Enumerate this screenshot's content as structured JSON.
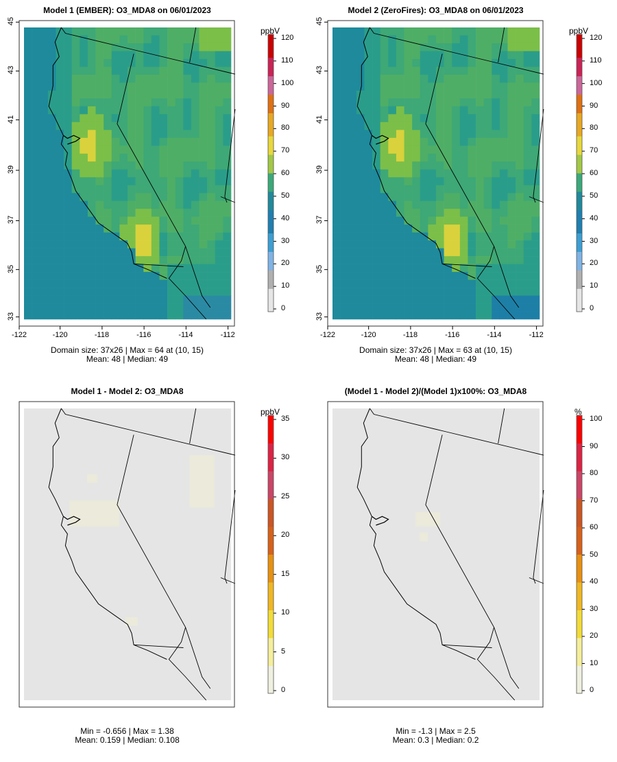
{
  "panels": [
    {
      "id": "p1",
      "title": "Model 1 (EMBER): O3_MDA8 on 06/01/2023",
      "stats_line1": "Domain size: 37x26 | Max = 64 at (10, 15)",
      "stats_line2": "Mean: 48 |  Median: 49",
      "unit": "ppbV",
      "colorbar_labels": [
        "0",
        "10",
        "20",
        "30",
        "40",
        "50",
        "60",
        "70",
        "80",
        "90",
        "100",
        "110",
        "120"
      ],
      "x_ticks": [
        "-122",
        "-120",
        "-118",
        "-116",
        "-114",
        "-112"
      ],
      "y_ticks": [
        "33",
        "35",
        "37",
        "39",
        "41",
        "43",
        "45"
      ]
    },
    {
      "id": "p2",
      "title": "Model 2 (ZeroFires): O3_MDA8 on 06/01/2023",
      "stats_line1": "Domain size: 37x26 | Max = 63 at (10, 15)",
      "stats_line2": "Mean: 48 |  Median: 49",
      "unit": "ppbV",
      "colorbar_labels": [
        "0",
        "10",
        "20",
        "30",
        "40",
        "50",
        "60",
        "70",
        "80",
        "90",
        "100",
        "110",
        "120"
      ],
      "x_ticks": [
        "-122",
        "-120",
        "-118",
        "-116",
        "-114",
        "-112"
      ],
      "y_ticks": [
        "33",
        "35",
        "37",
        "39",
        "41",
        "43",
        "45"
      ]
    },
    {
      "id": "p3",
      "title": "Model 1 - Model 2: O3_MDA8",
      "stats_line1": "Min = -0.656 | Max = 1.38",
      "stats_line2": "Mean: 0.159 |  Median: 0.108",
      "unit": "ppbV",
      "colorbar_labels": [
        "0",
        "5",
        "10",
        "15",
        "20",
        "25",
        "30",
        "35"
      ]
    },
    {
      "id": "p4",
      "title": "(Model 1 - Model 2)/(Model 1)x100%: O3_MDA8",
      "stats_line1": "Min = -1.3 | Max = 2.5",
      "stats_line2": "Mean: 0.3 |  Median: 0.2",
      "unit": "%",
      "colorbar_labels": [
        "0",
        "10",
        "20",
        "30",
        "40",
        "50",
        "60",
        "70",
        "80",
        "90",
        "100"
      ]
    }
  ],
  "colors": {
    "ocean": "#1e8a9c",
    "background_grid": "#e5e5e5",
    "land_low": "#2a9d8a",
    "land_mid": "#4fae66",
    "land_high": "#7bbf49",
    "hotspot": "#d9d23c"
  }
}
